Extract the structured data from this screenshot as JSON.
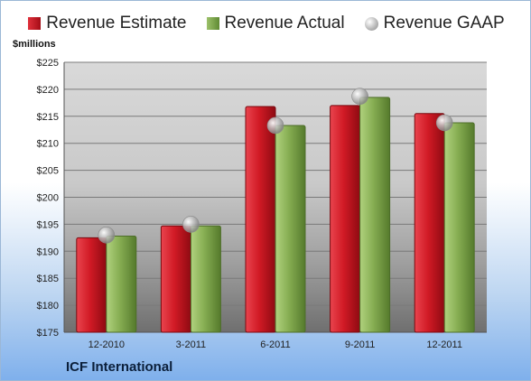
{
  "chart_data": {
    "type": "bar",
    "title": "",
    "ylabel": "$millions",
    "company": "ICF International",
    "categories": [
      "12-2010",
      "3-2011",
      "6-2011",
      "9-2011",
      "12-2011"
    ],
    "series": [
      {
        "name": "Revenue Estimate",
        "values": [
          192.5,
          194.7,
          216.8,
          217.0,
          215.5
        ],
        "color": "#c8151f"
      },
      {
        "name": "Revenue Actual",
        "values": [
          192.8,
          194.7,
          213.3,
          218.5,
          213.8
        ],
        "color": "#7ea54c"
      },
      {
        "name": "Revenue GAAP",
        "values": [
          193.0,
          195.0,
          213.3,
          218.7,
          213.8
        ],
        "color": "#a9a9a9"
      }
    ],
    "yticks": [
      "$175",
      "$180",
      "$185",
      "$190",
      "$195",
      "$200",
      "$205",
      "$210",
      "$215",
      "$220",
      "$225"
    ],
    "ylim": [
      175,
      225
    ],
    "grid": true,
    "legend": "top"
  }
}
